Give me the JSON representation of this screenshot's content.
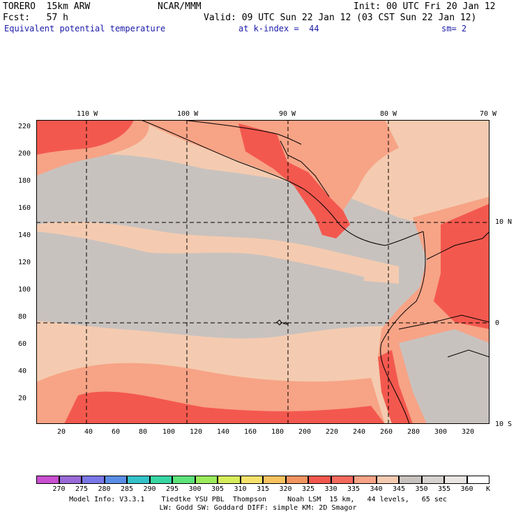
{
  "header": {
    "model": "TORERO  15km ARW",
    "org": "NCAR/MMM",
    "init": "Init: 00 UTC Fri 20 Jan 12",
    "fcst": "Fcst:   57 h",
    "valid": "Valid: 09 UTC Sun 22 Jan 12 (03 CST Sun 22 Jan 12)",
    "field": "Equivalent potential temperature",
    "level": "at k-index =  44",
    "smooth": "sm= 2"
  },
  "axes": {
    "top_lon": [
      "110 W",
      "100 W",
      "90 W",
      "80 W",
      "70 W"
    ],
    "right_lat": [
      "10 N",
      "0",
      "10 S"
    ],
    "left_y": [
      "220",
      "200",
      "180",
      "160",
      "140",
      "120",
      "100",
      "80",
      "60",
      "40",
      "20"
    ],
    "bottom_x": [
      "20",
      "40",
      "60",
      "80",
      "100",
      "120",
      "140",
      "160",
      "180",
      "200",
      "220",
      "240",
      "260",
      "280",
      "300",
      "320"
    ]
  },
  "colorbar": {
    "labels": [
      "270",
      "275",
      "280",
      "285",
      "290",
      "295",
      "300",
      "305",
      "310",
      "315",
      "320",
      "325",
      "330",
      "335",
      "340",
      "345",
      "350",
      "355",
      "360"
    ],
    "unit": "K",
    "colors": [
      "#c84fd0",
      "#9a6ad8",
      "#7a78e8",
      "#5a8ee6",
      "#34c2c8",
      "#38d6a2",
      "#5ce37a",
      "#9aeb5c",
      "#d6ec5a",
      "#f6e26a",
      "#f7c260",
      "#f29460",
      "#f3584e",
      "#f46a5c",
      "#f7a386",
      "#f4cbb0",
      "#c8c2bf",
      "#d6d2cf",
      "#e8e6e4",
      "#ffffff"
    ]
  },
  "map": {
    "water_base": "#f4cbb0",
    "band_gray": "#c8c2bf",
    "band_salmon": "#f7a386",
    "hot": "#f3584e",
    "coast": "#000000",
    "grid": "#000000"
  },
  "footer": {
    "line1": "Model Info: V3.3.1    Tiedtke YSU PBL  Thompson     Noah LSM  15 km,   44 levels,   65 sec",
    "line2": "LW: Godd SW: Goddard DIFF: simple KM: 2D Smagor"
  }
}
